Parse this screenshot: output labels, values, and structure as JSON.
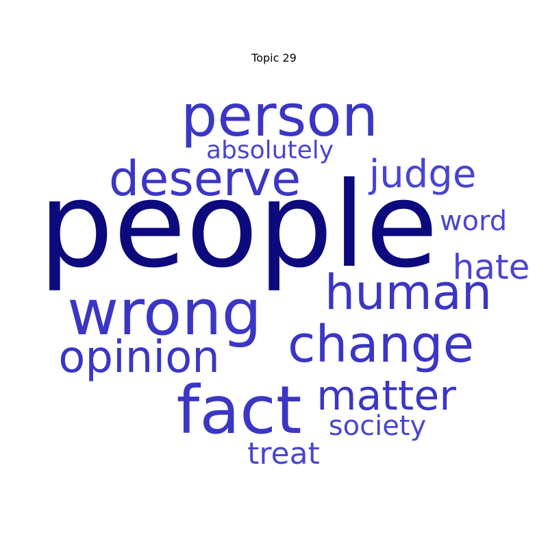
{
  "title": "Topic 29",
  "colors": {
    "dominant": "#0c0a7c",
    "primary": "#3b36c4",
    "secondary": "#4a45cf"
  },
  "words": [
    {
      "key": "people",
      "text": "people",
      "color": "dominant"
    },
    {
      "key": "person",
      "text": "person",
      "color": "primary"
    },
    {
      "key": "wrong",
      "text": "wrong",
      "color": "primary"
    },
    {
      "key": "fact",
      "text": "fact",
      "color": "primary"
    },
    {
      "key": "change",
      "text": "change",
      "color": "primary"
    },
    {
      "key": "human",
      "text": "human",
      "color": "primary"
    },
    {
      "key": "deserve",
      "text": "deserve",
      "color": "primary"
    },
    {
      "key": "opinion",
      "text": "opinion",
      "color": "primary"
    },
    {
      "key": "matter",
      "text": "matter",
      "color": "primary"
    },
    {
      "key": "judge",
      "text": "judge",
      "color": "secondary"
    },
    {
      "key": "hate",
      "text": "hate",
      "color": "secondary"
    },
    {
      "key": "treat",
      "text": "treat",
      "color": "secondary"
    },
    {
      "key": "society",
      "text": "society",
      "color": "secondary"
    },
    {
      "key": "word",
      "text": "word",
      "color": "secondary"
    },
    {
      "key": "absolutely",
      "text": "absolutely",
      "color": "secondary"
    }
  ]
}
